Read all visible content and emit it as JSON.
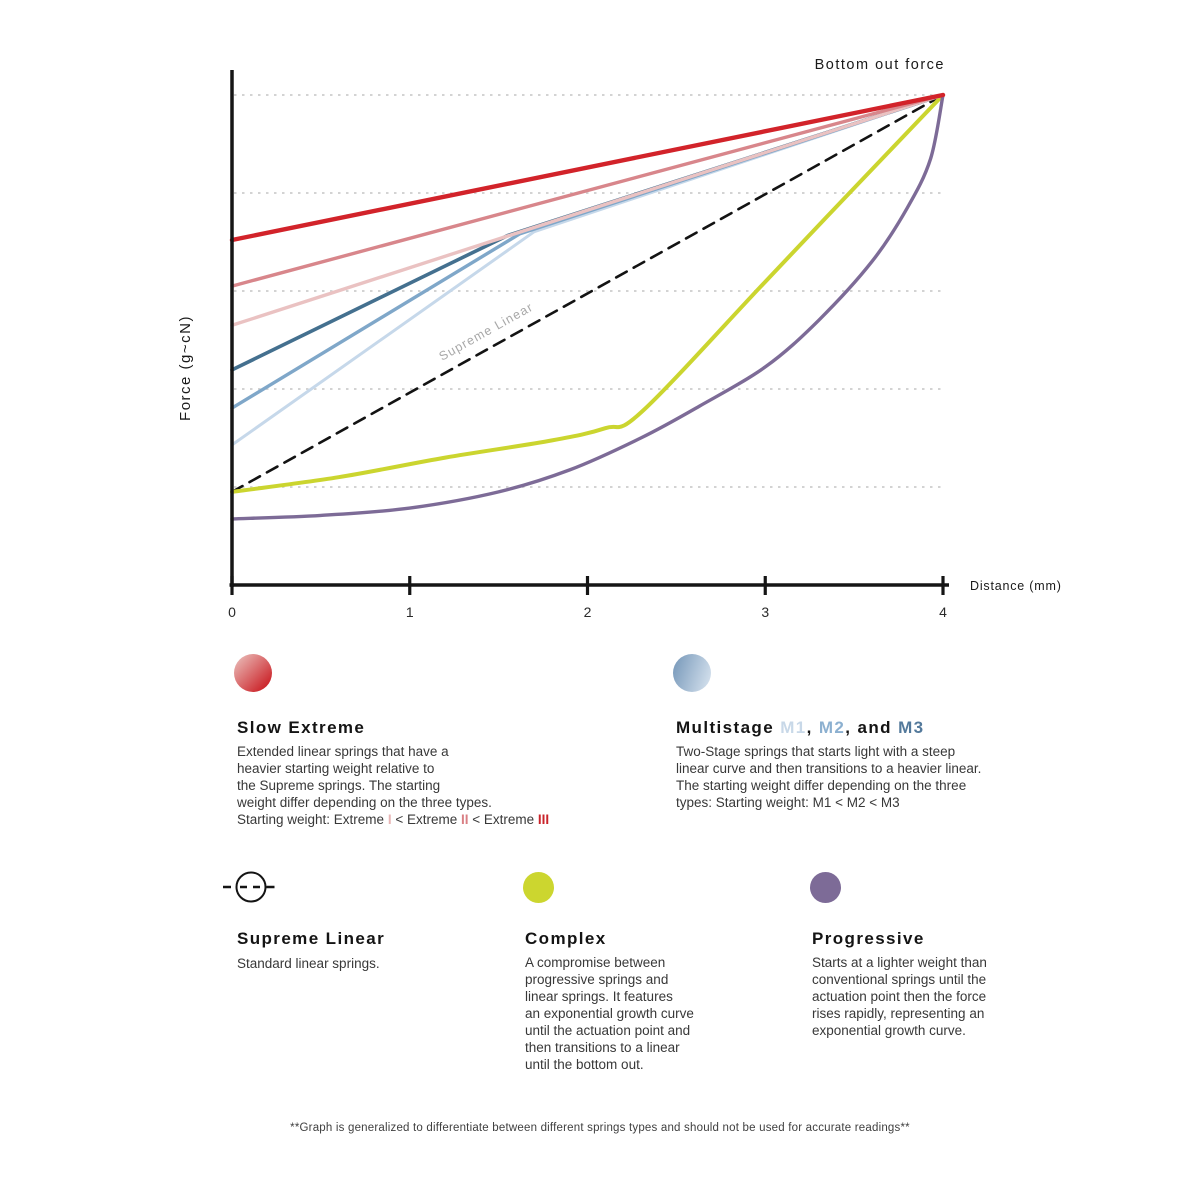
{
  "chart_data": {
    "type": "line",
    "title": "",
    "xlabel": "Distance (mm)",
    "ylabel": "Force (g~cN)",
    "xlim": [
      0,
      4
    ],
    "ylim": [
      0,
      105
    ],
    "x_tick_values": [
      0,
      1,
      2,
      3,
      4
    ],
    "x_tick_labels": [
      "0",
      "1",
      "2",
      "3",
      "4"
    ],
    "grid": "horizontal-dotted",
    "gridline_force_pct_of_bottom_out": [
      20,
      40,
      60,
      80,
      100
    ],
    "labels": {
      "bottom_out": "Bottom out force",
      "x_axis": "Distance (mm)",
      "y_axis": "Force (g~cN)",
      "line_annotation": "Supreme Linear"
    },
    "series": [
      {
        "name": "Multistage M1",
        "color": "#c6d8ea",
        "width": 3,
        "smooth": false,
        "points": [
          [
            0,
            28.6
          ],
          [
            1.7,
            72.1
          ],
          [
            4,
            100
          ]
        ]
      },
      {
        "name": "Multistage M2",
        "color": "#7fa7c9",
        "width": 3.4,
        "smooth": false,
        "points": [
          [
            0,
            36.1
          ],
          [
            1.62,
            71.7
          ],
          [
            4,
            100
          ]
        ]
      },
      {
        "name": "Multistage M3",
        "color": "#44708f",
        "width": 3.6,
        "smooth": false,
        "points": [
          [
            0,
            43.9
          ],
          [
            1.55,
            71.3
          ],
          [
            4,
            100
          ]
        ]
      },
      {
        "name": "Supreme Linear",
        "color": "#131313",
        "width": 2.6,
        "dash": "12 8",
        "smooth": false,
        "points": [
          [
            0,
            19
          ],
          [
            4,
            100
          ]
        ]
      },
      {
        "name": "Complex",
        "color": "#cbd52f",
        "width": 4,
        "smooth": true,
        "points": [
          [
            0,
            19
          ],
          [
            0.6,
            22
          ],
          [
            1.2,
            26
          ],
          [
            1.8,
            29.5
          ],
          [
            2.1,
            32
          ],
          [
            2.31,
            35.5
          ],
          [
            3.0,
            61.9
          ],
          [
            3.5,
            81
          ],
          [
            4,
            100
          ]
        ]
      },
      {
        "name": "Progressive",
        "color": "#7d6b97",
        "width": 3.4,
        "smooth": true,
        "points": [
          [
            0,
            13.5
          ],
          [
            0.5,
            14.2
          ],
          [
            1.0,
            15.7
          ],
          [
            1.5,
            19
          ],
          [
            1.9,
            23.5
          ],
          [
            2.3,
            30
          ],
          [
            2.63,
            36.5
          ],
          [
            3.0,
            44.5
          ],
          [
            3.3,
            54
          ],
          [
            3.6,
            66
          ],
          [
            3.8,
            77
          ],
          [
            3.93,
            87
          ],
          [
            4,
            100
          ]
        ]
      },
      {
        "name": "Slow Extreme I",
        "color": "#eac2c2",
        "width": 3.4,
        "smooth": false,
        "points": [
          [
            0,
            53
          ],
          [
            4,
            100
          ]
        ]
      },
      {
        "name": "Slow Extreme II",
        "color": "#d8868b",
        "width": 3.4,
        "smooth": false,
        "points": [
          [
            0,
            61
          ],
          [
            4,
            100
          ]
        ]
      },
      {
        "name": "Slow Extreme III",
        "color": "#d2232a",
        "width": 4.4,
        "smooth": false,
        "points": [
          [
            0,
            70.4
          ],
          [
            4,
            100
          ]
        ]
      }
    ]
  },
  "legend": {
    "slow_extreme": {
      "title": "Slow Extreme",
      "body": "Extended linear springs that have a\nheavier starting weight relative to\nthe Supreme springs. The starting\nweight differ depending on the three types.",
      "weight_line": [
        {
          "t": "Starting weight: Extreme "
        },
        {
          "t": "I",
          "c": "#e7b4b4",
          "b": true
        },
        {
          "t": " < Extreme "
        },
        {
          "t": "II",
          "c": "#d97f84",
          "b": true
        },
        {
          "t": " < Extreme "
        },
        {
          "t": "III",
          "c": "#c9232a",
          "b": true
        }
      ]
    },
    "multistage": {
      "title_rich": [
        {
          "t": "Multistage "
        },
        {
          "t": "M1",
          "c": "#c8d8e8"
        },
        {
          "t": ", "
        },
        {
          "t": "M2",
          "c": "#8cb0d0"
        },
        {
          "t": ", and "
        },
        {
          "t": "M3",
          "c": "#53799b"
        }
      ],
      "body": "Two-Stage springs that starts light with a steep\nlinear curve and then transitions to a heavier linear.\nThe starting weight differ depending on the three\ntypes: Starting weight: M1 < M2 < M3"
    },
    "supreme_linear": {
      "title": "Supreme Linear",
      "body": "Standard linear springs."
    },
    "complex": {
      "title": "Complex",
      "body": "A compromise between\nprogressive springs and\nlinear springs. It features\nan exponential growth curve\nuntil the actuation point and\nthen transitions to a linear\nuntil the bottom out."
    },
    "progressive": {
      "title": "Progressive",
      "body": "Starts at a lighter weight than\nconventional springs until the\nactuation point then the force\nrises rapidly, representing an\nexponential growth curve."
    }
  },
  "footnote": "**Graph is generalized to differentiate between different springs types and should not be used for accurate readings**",
  "colors": {
    "extreme_3": "#d2232a",
    "extreme_2": "#d8868b",
    "extreme_1": "#eac2c2",
    "m3": "#44708f",
    "m2": "#7fa7c9",
    "m1": "#c6d8ea",
    "complex": "#cbd52f",
    "progressive": "#7d6b97",
    "gridline": "#d3d3d3",
    "axis": "#151515",
    "annotation_gray": "#a8a8a8"
  }
}
